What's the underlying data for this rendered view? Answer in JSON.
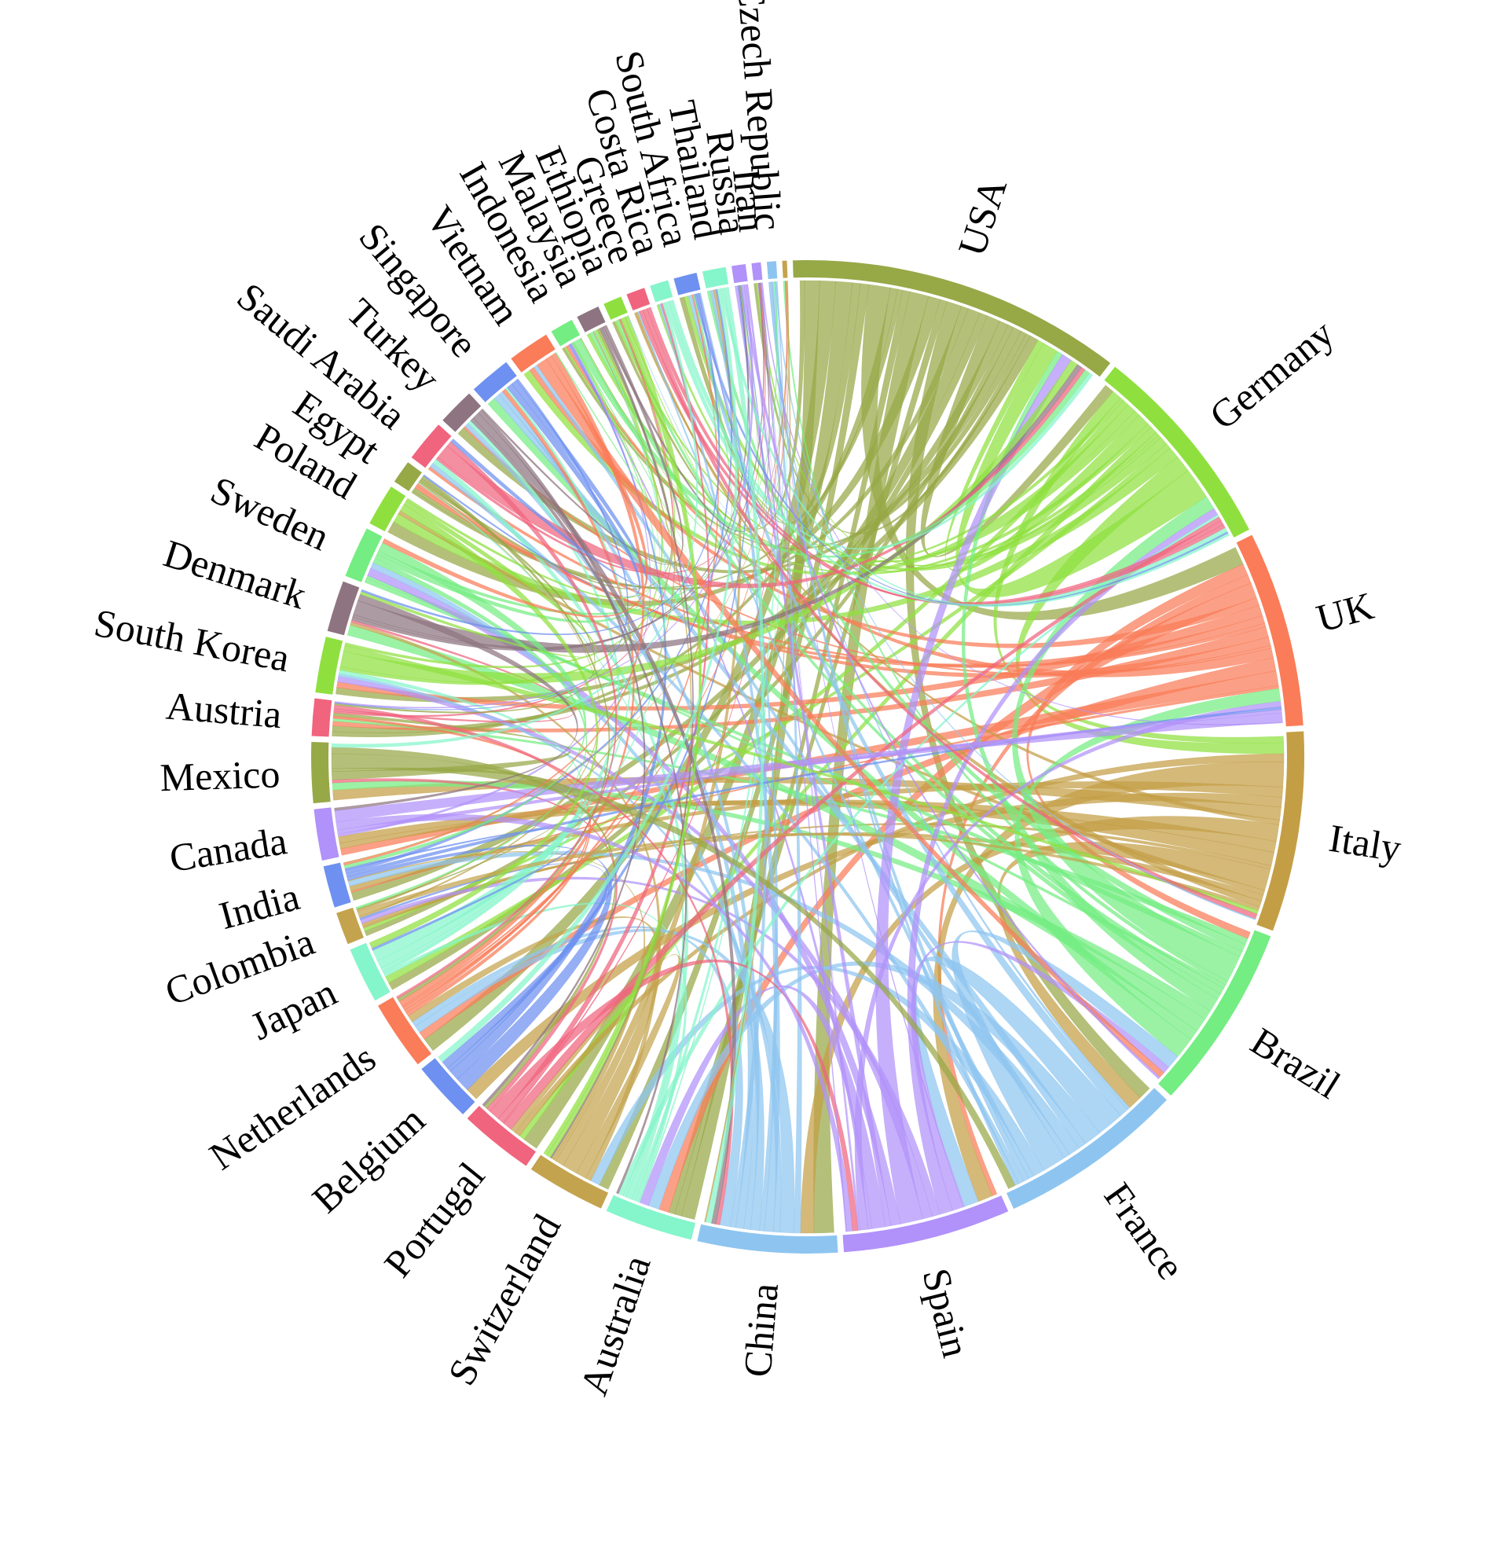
{
  "diagram": {
    "type": "chord",
    "countries": [
      {
        "name": "USA",
        "color": "#97a847",
        "weight": 72
      },
      {
        "name": "Germany",
        "color": "#8fe03f",
        "weight": 45
      },
      {
        "name": "UK",
        "color": "#fa7c58",
        "weight": 42
      },
      {
        "name": "Italy",
        "color": "#c49e45",
        "weight": 43
      },
      {
        "name": "Brazil",
        "color": "#74ed82",
        "weight": 40
      },
      {
        "name": "France",
        "color": "#8dc5f0",
        "weight": 40
      },
      {
        "name": "Spain",
        "color": "#b191fa",
        "weight": 36
      },
      {
        "name": "China",
        "color": "#8dc5f0",
        "weight": 30
      },
      {
        "name": "Australia",
        "color": "#85f5cb",
        "weight": 19
      },
      {
        "name": "Switzerland",
        "color": "#c4a34e",
        "weight": 17
      },
      {
        "name": "Portugal",
        "color": "#f0647e",
        "weight": 16
      },
      {
        "name": "Belgium",
        "color": "#6e90f0",
        "weight": 13
      },
      {
        "name": "Netherlands",
        "color": "#fa7c58",
        "weight": 15
      },
      {
        "name": "Japan",
        "color": "#85f5cb",
        "weight": 12
      },
      {
        "name": "Colombia",
        "color": "#c4a34e",
        "weight": 7
      },
      {
        "name": "India",
        "color": "#6e90f0",
        "weight": 9
      },
      {
        "name": "Canada",
        "color": "#b191fa",
        "weight": 11
      },
      {
        "name": "Mexico",
        "color": "#97a847",
        "weight": 13
      },
      {
        "name": "Austria",
        "color": "#f0647e",
        "weight": 8
      },
      {
        "name": "South Korea",
        "color": "#8fe03f",
        "weight": 12
      },
      {
        "name": "Denmark",
        "color": "#8e7480",
        "weight": 11
      },
      {
        "name": "Sweden",
        "color": "#74ed82",
        "weight": 11
      },
      {
        "name": "Poland",
        "color": "#8fe03f",
        "weight": 9
      },
      {
        "name": "Egypt",
        "color": "#97a847",
        "weight": 5
      },
      {
        "name": "Saudi Arabia",
        "color": "#f0647e",
        "weight": 9
      },
      {
        "name": "Turkey",
        "color": "#8e7480",
        "weight": 8
      },
      {
        "name": "Singapore",
        "color": "#6e90f0",
        "weight": 9
      },
      {
        "name": "Vietnam",
        "color": "#fa7c58",
        "weight": 9
      },
      {
        "name": "Indonesia",
        "color": "#74ed82",
        "weight": 5
      },
      {
        "name": "Malaysia",
        "color": "#8e7480",
        "weight": 5
      },
      {
        "name": "Ethiopia",
        "color": "#8fe03f",
        "weight": 4
      },
      {
        "name": "Greece",
        "color": "#f0647e",
        "weight": 4
      },
      {
        "name": "Costa Rica",
        "color": "#85f5cb",
        "weight": 4
      },
      {
        "name": "South Africa",
        "color": "#6e90f0",
        "weight": 5
      },
      {
        "name": "Thailand",
        "color": "#85f5cb",
        "weight": 5
      },
      {
        "name": "Russia",
        "color": "#b191fa",
        "weight": 3
      },
      {
        "name": "Iran",
        "color": "#b191fa",
        "weight": 2
      },
      {
        "name": "Czech Republic",
        "color": "#8dc5f0",
        "weight": 2
      },
      {
        "name": "",
        "color": "#c4a34e",
        "weight": 1
      }
    ]
  }
}
